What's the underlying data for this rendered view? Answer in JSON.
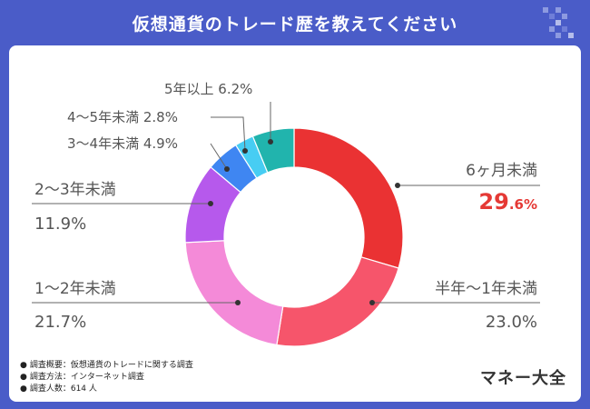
{
  "header": {
    "title": "仮想通貨のトレード歴を教えてください"
  },
  "colors": {
    "background": "#4a5cc8",
    "highlight": "#e53935",
    "text": "#555555"
  },
  "chart_data": {
    "type": "pie",
    "title": "仮想通貨のトレード歴を教えてください",
    "slices": [
      {
        "label": "6ヶ月未満",
        "value": 29.6,
        "display": "29.6%",
        "color": "#ea3233"
      },
      {
        "label": "半年〜1年未満",
        "value": 23.0,
        "display": "23.0%",
        "color": "#f6556b"
      },
      {
        "label": "1〜2年未満",
        "value": 21.7,
        "display": "21.7%",
        "color": "#f48ad8"
      },
      {
        "label": "2〜3年未満",
        "value": 11.9,
        "display": "11.9%",
        "color": "#b659ec"
      },
      {
        "label": "3〜4年未満",
        "value": 4.9,
        "display": "4.9%",
        "color": "#3f86f2"
      },
      {
        "label": "4〜5年未満",
        "value": 2.8,
        "display": "2.8%",
        "color": "#47cdf3"
      },
      {
        "label": "5年以上",
        "value": 6.2,
        "display": "6.2%",
        "color": "#21b4ad"
      }
    ]
  },
  "footer": {
    "notes": [
      "調査概要：仮想通貨のトレードに関する調査",
      "調査方法：インターネット調査",
      "調査人数：614 人"
    ],
    "brand": "マネー大全"
  }
}
